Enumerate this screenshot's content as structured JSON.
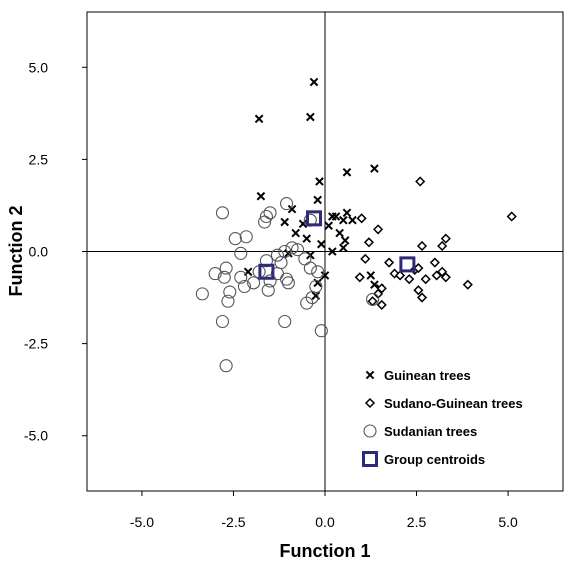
{
  "chart_data": {
    "type": "scatter",
    "xlabel": "Function 1",
    "ylabel": "Function 2",
    "xlim": [
      -6.5,
      6.5
    ],
    "ylim": [
      -6.5,
      6.5
    ],
    "xticks": [
      -5.0,
      -2.5,
      0.0,
      2.5,
      5.0
    ],
    "yticks": [
      -5.0,
      -2.5,
      0.0,
      2.5,
      5.0
    ],
    "xtick_labels": [
      "-5.0",
      "-2.5",
      "0.0",
      "2.5",
      "5.0"
    ],
    "ytick_labels": [
      "-5.0",
      "-2.5",
      "0.0",
      "2.5",
      "5.0"
    ],
    "reference_lines": {
      "x": 0,
      "y": 0
    },
    "grid": false,
    "legend_position": "bottom-right",
    "series": [
      {
        "name": "Guinean trees",
        "marker": "cross",
        "color": "#000000",
        "points": [
          [
            -1.8,
            3.6
          ],
          [
            -0.3,
            4.6
          ],
          [
            -0.4,
            3.65
          ],
          [
            -1.75,
            1.5
          ],
          [
            -0.15,
            1.9
          ],
          [
            0.6,
            2.15
          ],
          [
            1.35,
            2.25
          ],
          [
            -0.2,
            1.4
          ],
          [
            0.3,
            0.95
          ],
          [
            0.5,
            0.85
          ],
          [
            0.6,
            1.05
          ],
          [
            0.75,
            0.85
          ],
          [
            0.1,
            0.7
          ],
          [
            -0.9,
            1.15
          ],
          [
            -1.1,
            0.8
          ],
          [
            -0.8,
            0.5
          ],
          [
            -0.6,
            0.75
          ],
          [
            0.4,
            0.5
          ],
          [
            0.55,
            0.3
          ],
          [
            -0.1,
            0.2
          ],
          [
            0.2,
            0.0
          ],
          [
            0.5,
            0.1
          ],
          [
            -1.0,
            -0.05
          ],
          [
            -0.4,
            -0.1
          ],
          [
            -2.1,
            -0.55
          ],
          [
            0.0,
            -0.65
          ],
          [
            -0.2,
            -0.85
          ],
          [
            1.25,
            -0.65
          ],
          [
            1.35,
            -0.9
          ],
          [
            -0.25,
            -1.2
          ],
          [
            1.5,
            -1.0
          ],
          [
            -0.5,
            0.35
          ],
          [
            0.2,
            0.95
          ]
        ]
      },
      {
        "name": "Sudano-Guinean trees",
        "marker": "diamond",
        "color": "#000000",
        "points": [
          [
            2.6,
            1.9
          ],
          [
            5.1,
            0.95
          ],
          [
            1.0,
            0.9
          ],
          [
            1.45,
            0.6
          ],
          [
            3.3,
            0.35
          ],
          [
            3.2,
            0.15
          ],
          [
            1.2,
            0.25
          ],
          [
            2.65,
            0.15
          ],
          [
            1.1,
            -0.2
          ],
          [
            1.75,
            -0.3
          ],
          [
            2.45,
            -0.5
          ],
          [
            3.2,
            -0.55
          ],
          [
            3.05,
            -0.65
          ],
          [
            3.3,
            -0.7
          ],
          [
            1.9,
            -0.6
          ],
          [
            2.3,
            -0.75
          ],
          [
            2.05,
            -0.65
          ],
          [
            2.75,
            -0.75
          ],
          [
            3.0,
            -0.3
          ],
          [
            3.9,
            -0.9
          ],
          [
            1.55,
            -1.0
          ],
          [
            1.45,
            -1.15
          ],
          [
            1.55,
            -1.45
          ],
          [
            1.3,
            -1.35
          ],
          [
            2.55,
            -1.05
          ],
          [
            2.65,
            -1.25
          ],
          [
            2.55,
            -0.45
          ],
          [
            0.95,
            -0.7
          ]
        ]
      },
      {
        "name": "Sudanian trees",
        "marker": "circle",
        "color": "#000000",
        "points": [
          [
            -2.8,
            1.05
          ],
          [
            -1.05,
            1.3
          ],
          [
            -1.5,
            1.05
          ],
          [
            -1.65,
            0.8
          ],
          [
            -2.15,
            0.4
          ],
          [
            -2.45,
            0.35
          ],
          [
            -2.3,
            -0.05
          ],
          [
            -1.1,
            0.0
          ],
          [
            -0.9,
            0.1
          ],
          [
            -1.3,
            -0.1
          ],
          [
            -0.75,
            0.05
          ],
          [
            -1.6,
            -0.25
          ],
          [
            -1.2,
            -0.3
          ],
          [
            -0.4,
            -0.45
          ],
          [
            -0.2,
            -0.55
          ],
          [
            -1.8,
            -0.55
          ],
          [
            -2.7,
            -0.45
          ],
          [
            -3.0,
            -0.6
          ],
          [
            -2.75,
            -0.7
          ],
          [
            -1.5,
            -0.8
          ],
          [
            -1.0,
            -0.85
          ],
          [
            -1.05,
            -0.75
          ],
          [
            -0.25,
            -0.95
          ],
          [
            -1.95,
            -0.85
          ],
          [
            -2.2,
            -0.95
          ],
          [
            -3.35,
            -1.15
          ],
          [
            -2.6,
            -1.1
          ],
          [
            -2.65,
            -1.35
          ],
          [
            -1.55,
            -1.05
          ],
          [
            -0.35,
            -1.25
          ],
          [
            -0.5,
            -1.4
          ],
          [
            1.3,
            -1.3
          ],
          [
            -1.1,
            -1.9
          ],
          [
            -2.8,
            -1.9
          ],
          [
            -0.1,
            -2.15
          ],
          [
            -2.7,
            -3.1
          ],
          [
            -0.4,
            0.85
          ],
          [
            -1.6,
            0.95
          ],
          [
            -1.3,
            -0.6
          ],
          [
            -2.3,
            -0.7
          ],
          [
            -0.55,
            -0.2
          ]
        ]
      },
      {
        "name": "Group centroids",
        "marker": "square",
        "color": "#2E2A7A",
        "points": [
          [
            -0.3,
            0.9
          ],
          [
            -1.6,
            -0.55
          ],
          [
            2.25,
            -0.35
          ]
        ]
      }
    ]
  }
}
